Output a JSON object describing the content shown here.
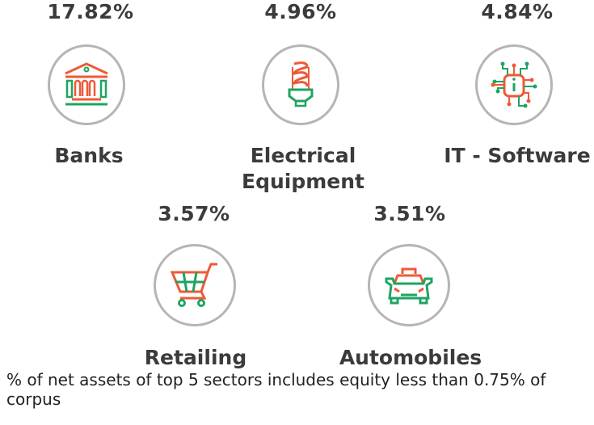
{
  "colors": {
    "accent_orange": "#ee5a38",
    "accent_green": "#1fa462",
    "circle_border": "#b5b5b5",
    "text": "#3b3b3b"
  },
  "sectors": [
    {
      "percent": "17.82%",
      "label": "Banks",
      "icon": "bank-icon"
    },
    {
      "percent": "4.96%",
      "label": "Electrical Equipment",
      "icon": "light-bulb-icon"
    },
    {
      "percent": "4.84%",
      "label": "IT - Software",
      "icon": "chip-icon"
    },
    {
      "percent": "3.57%",
      "label": "Retailing",
      "icon": "shopping-cart-icon"
    },
    {
      "percent": "3.51%",
      "label": "Automobiles",
      "icon": "car-icon"
    }
  ],
  "footnote": "% of net assets of top 5 sectors includes equity less than 0.75% of corpus"
}
